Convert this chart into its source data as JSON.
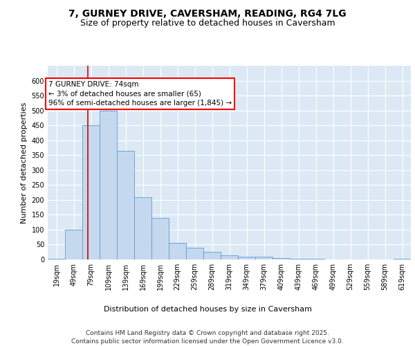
{
  "title_line1": "7, GURNEY DRIVE, CAVERSHAM, READING, RG4 7LG",
  "title_line2": "Size of property relative to detached houses in Caversham",
  "xlabel": "Distribution of detached houses by size in Caversham",
  "ylabel": "Number of detached properties",
  "bar_color": "#c5d8ed",
  "bar_edge_color": "#5b9bd5",
  "plot_bg_color": "#dce9f5",
  "annotation_text": "7 GURNEY DRIVE: 74sqm\n← 3% of detached houses are smaller (65)\n96% of semi-detached houses are larger (1,845) →",
  "annotation_box_color": "white",
  "annotation_box_edge": "red",
  "vline_x": 74,
  "vline_color": "#cc0000",
  "categories": [
    "19sqm",
    "49sqm",
    "79sqm",
    "109sqm",
    "139sqm",
    "169sqm",
    "199sqm",
    "229sqm",
    "259sqm",
    "289sqm",
    "319sqm",
    "349sqm",
    "379sqm",
    "409sqm",
    "439sqm",
    "469sqm",
    "499sqm",
    "529sqm",
    "559sqm",
    "589sqm",
    "619sqm"
  ],
  "bin_edges": [
    4,
    34,
    64,
    94,
    124,
    154,
    184,
    214,
    244,
    274,
    304,
    334,
    364,
    394,
    424,
    454,
    484,
    514,
    544,
    574,
    604,
    634
  ],
  "values": [
    2,
    100,
    450,
    500,
    365,
    210,
    140,
    55,
    40,
    25,
    15,
    10,
    10,
    5,
    2,
    2,
    0,
    0,
    0,
    0,
    2
  ],
  "ylim": [
    0,
    650
  ],
  "yticks": [
    0,
    50,
    100,
    150,
    200,
    250,
    300,
    350,
    400,
    450,
    500,
    550,
    600
  ],
  "footnote": "Contains HM Land Registry data © Crown copyright and database right 2025.\nContains public sector information licensed under the Open Government Licence v3.0.",
  "title_fontsize": 10,
  "subtitle_fontsize": 9,
  "axis_label_fontsize": 8,
  "tick_fontsize": 7,
  "annotation_fontsize": 7.5,
  "footnote_fontsize": 6.5
}
